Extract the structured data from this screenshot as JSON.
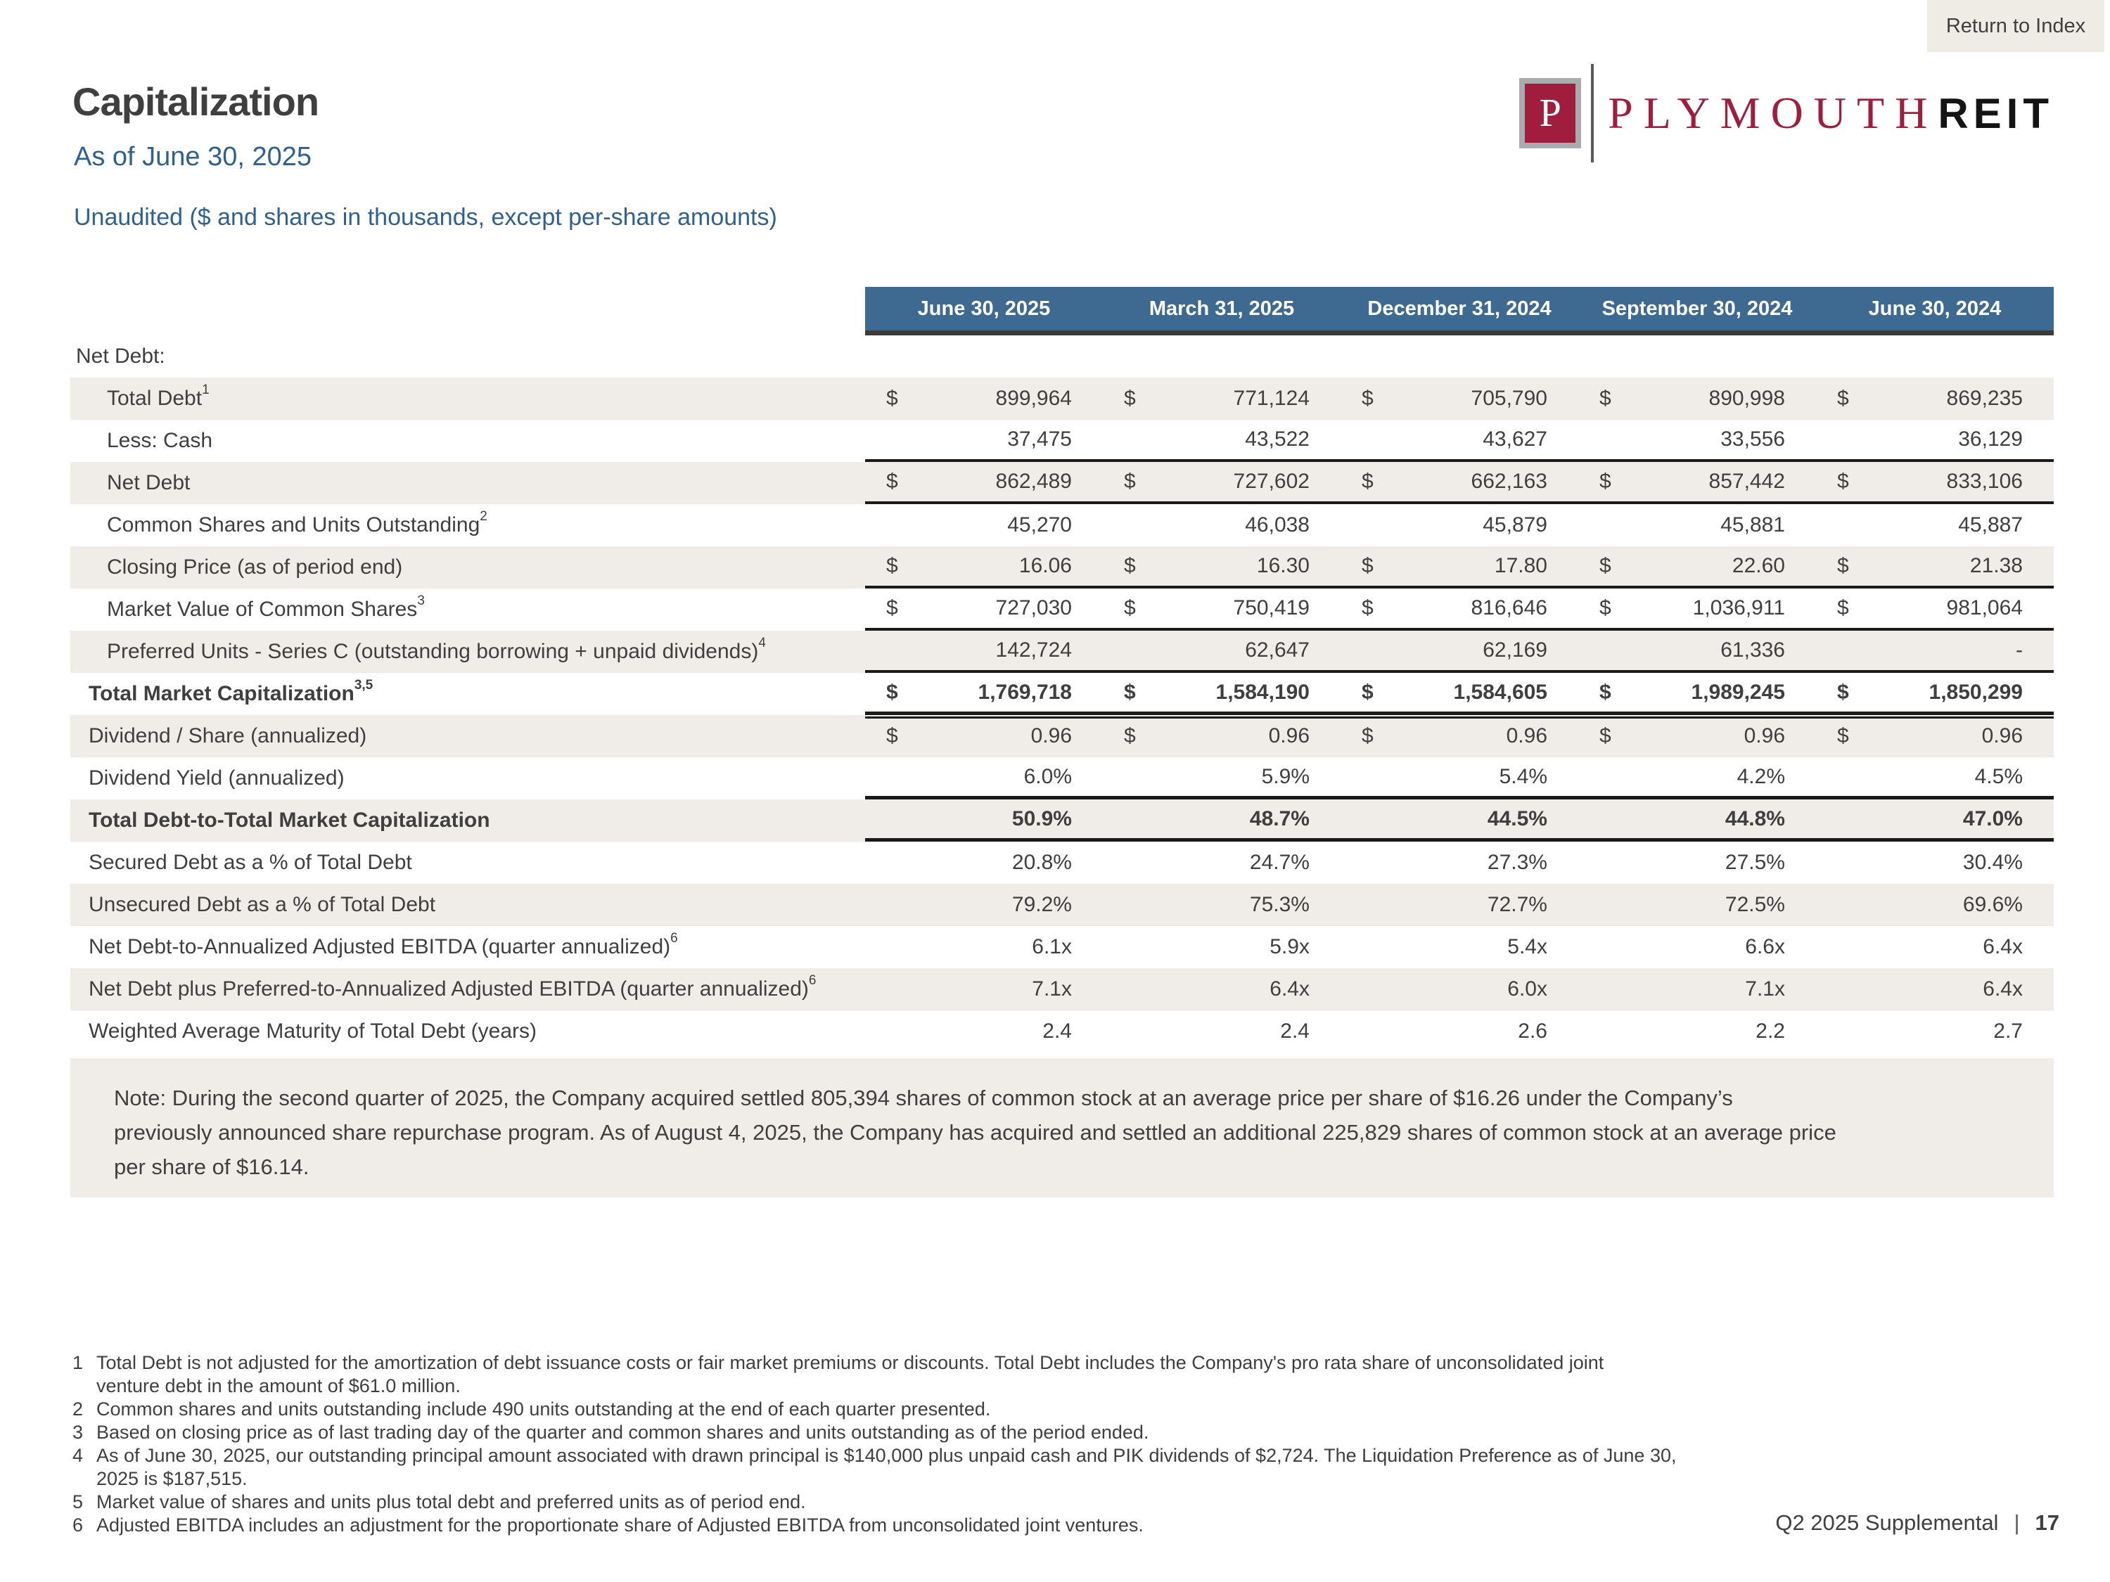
{
  "colors": {
    "header_blue": "#3e6991",
    "row_shade": "#f0ede8",
    "crimson": "#a01d3d",
    "blue_text": "#2e6191",
    "rule_black": "#1a1a1a"
  },
  "page": {
    "return_button": "Return to Index",
    "title": "Capitalization",
    "subtitle": "As of June 30, 2025",
    "unaudited_note": "Unaudited ($ and shares in thousands, except per-share amounts)",
    "footer_left": "Q2 2025 Supplemental",
    "footer_separator": "|",
    "footer_page": "17"
  },
  "logo": {
    "monogram": "P",
    "name": "PLYMOUTH",
    "suffix": "REIT"
  },
  "table": {
    "columns": [
      "June 30, 2025",
      "March 31, 2025",
      "December 31, 2024",
      "September 30, 2024",
      "June 30, 2024"
    ],
    "rows": [
      {
        "label": "Net Debt:",
        "sup": "",
        "indent": 0,
        "bold": false,
        "shaded": false,
        "dollar": false,
        "border": "none",
        "values": [
          "",
          "",
          "",
          "",
          ""
        ]
      },
      {
        "label": "Total Debt",
        "sup": "1",
        "indent": 2,
        "bold": false,
        "shaded": true,
        "dollar": true,
        "border": "none",
        "values": [
          "899,964",
          "771,124",
          "705,790",
          "890,998",
          "869,235"
        ]
      },
      {
        "label": "Less: Cash",
        "sup": "",
        "indent": 2,
        "bold": false,
        "shaded": false,
        "dollar": false,
        "border": "thin",
        "values": [
          "37,475",
          "43,522",
          "43,627",
          "33,556",
          "36,129"
        ]
      },
      {
        "label": "Net Debt",
        "sup": "",
        "indent": 2,
        "bold": false,
        "shaded": true,
        "dollar": true,
        "border": "thin",
        "values": [
          "862,489",
          "727,602",
          "662,163",
          "857,442",
          "833,106"
        ]
      },
      {
        "label": "Common Shares and Units Outstanding",
        "sup": "2",
        "indent": 2,
        "bold": false,
        "shaded": false,
        "dollar": false,
        "border": "none",
        "values": [
          "45,270",
          "46,038",
          "45,879",
          "45,881",
          "45,887"
        ]
      },
      {
        "label": "Closing Price (as of period end)",
        "sup": "",
        "indent": 2,
        "bold": false,
        "shaded": true,
        "dollar": true,
        "border": "thin",
        "values": [
          "16.06",
          "16.30",
          "17.80",
          "22.60",
          "21.38"
        ]
      },
      {
        "label": "Market Value of Common Shares",
        "sup": "3",
        "indent": 2,
        "bold": false,
        "shaded": false,
        "dollar": true,
        "border": "thin",
        "values": [
          "727,030",
          "750,419",
          "816,646",
          "1,036,911",
          "981,064"
        ]
      },
      {
        "label": "Preferred Units - Series C (outstanding borrowing + unpaid dividends)",
        "sup": "4",
        "indent": 2,
        "bold": false,
        "shaded": true,
        "dollar": false,
        "border": "thin",
        "values": [
          "142,724",
          "62,647",
          "62,169",
          "61,336",
          "-"
        ]
      },
      {
        "label": "Total Market Capitalization",
        "sup": "3,5",
        "indent": 1,
        "bold": true,
        "shaded": false,
        "dollar": true,
        "border": "double",
        "values": [
          "1,769,718",
          "1,584,190",
          "1,584,605",
          "1,989,245",
          "1,850,299"
        ]
      },
      {
        "label": "Dividend / Share (annualized)",
        "sup": "",
        "indent": 1,
        "bold": false,
        "shaded": true,
        "dollar": true,
        "border": "none",
        "values": [
          "0.96",
          "0.96",
          "0.96",
          "0.96",
          "0.96"
        ]
      },
      {
        "label": "Dividend Yield (annualized)",
        "sup": "",
        "indent": 1,
        "bold": false,
        "shaded": false,
        "dollar": false,
        "border": "thick",
        "values": [
          "6.0%",
          "5.9%",
          "5.4%",
          "4.2%",
          "4.5%"
        ]
      },
      {
        "label": "Total Debt-to-Total Market Capitalization",
        "sup": "",
        "indent": 1,
        "bold": true,
        "shaded": true,
        "dollar": false,
        "border": "thick",
        "values": [
          "50.9%",
          "48.7%",
          "44.5%",
          "44.8%",
          "47.0%"
        ]
      },
      {
        "label": "Secured Debt as a % of Total Debt",
        "sup": "",
        "indent": 1,
        "bold": false,
        "shaded": false,
        "dollar": false,
        "border": "none",
        "values": [
          "20.8%",
          "24.7%",
          "27.3%",
          "27.5%",
          "30.4%"
        ]
      },
      {
        "label": "Unsecured Debt as a % of Total Debt",
        "sup": "",
        "indent": 1,
        "bold": false,
        "shaded": true,
        "dollar": false,
        "border": "none",
        "values": [
          "79.2%",
          "75.3%",
          "72.7%",
          "72.5%",
          "69.6%"
        ]
      },
      {
        "label": "Net Debt-to-Annualized Adjusted EBITDA (quarter annualized)",
        "sup": "6",
        "indent": 1,
        "bold": false,
        "shaded": false,
        "dollar": false,
        "border": "none",
        "values": [
          "6.1x",
          "5.9x",
          "5.4x",
          "6.6x",
          "6.4x"
        ]
      },
      {
        "label": "Net Debt plus Preferred-to-Annualized Adjusted EBITDA (quarter annualized)",
        "sup": "6",
        "indent": 1,
        "bold": false,
        "shaded": true,
        "dollar": false,
        "border": "none",
        "values": [
          "7.1x",
          "6.4x",
          "6.0x",
          "7.1x",
          "6.4x"
        ]
      },
      {
        "label": "Weighted Average Maturity of Total Debt (years)",
        "sup": "",
        "indent": 1,
        "bold": false,
        "shaded": false,
        "dollar": false,
        "border": "none",
        "values": [
          "2.4",
          "2.4",
          "2.6",
          "2.2",
          "2.7"
        ]
      }
    ]
  },
  "note": {
    "lines": [
      "Note: During the second quarter of 2025, the Company acquired settled 805,394 shares of common stock at an average price per share of $16.26 under the Company’s",
      "previously announced share repurchase program. As of August 4, 2025, the Company has acquired and settled an additional 225,829 shares of common stock at an average price",
      "per share of $16.14."
    ]
  },
  "footnotes": [
    {
      "num": "1",
      "lines": [
        "Total Debt is not adjusted for the amortization of debt issuance costs or fair market premiums or discounts. Total Debt includes the Company's pro rata share of unconsolidated joint",
        "venture debt in the amount of $61.0 million."
      ]
    },
    {
      "num": "2",
      "lines": [
        "Common shares and units outstanding include 490 units outstanding at the end of each quarter presented."
      ]
    },
    {
      "num": "3",
      "lines": [
        "Based on closing price as of last trading day of the quarter and common shares and units outstanding as of the period ended."
      ]
    },
    {
      "num": "4",
      "lines": [
        "As of June 30, 2025, our outstanding principal amount associated with drawn principal is $140,000 plus unpaid cash and PIK dividends of $2,724.  The Liquidation Preference as of June 30,",
        "2025 is $187,515."
      ]
    },
    {
      "num": "5",
      "lines": [
        "Market value of shares and units plus total debt and preferred units as of period end."
      ]
    },
    {
      "num": "6",
      "lines": [
        "Adjusted EBITDA includes an adjustment for the proportionate share of Adjusted EBITDA from unconsolidated joint ventures."
      ]
    }
  ]
}
